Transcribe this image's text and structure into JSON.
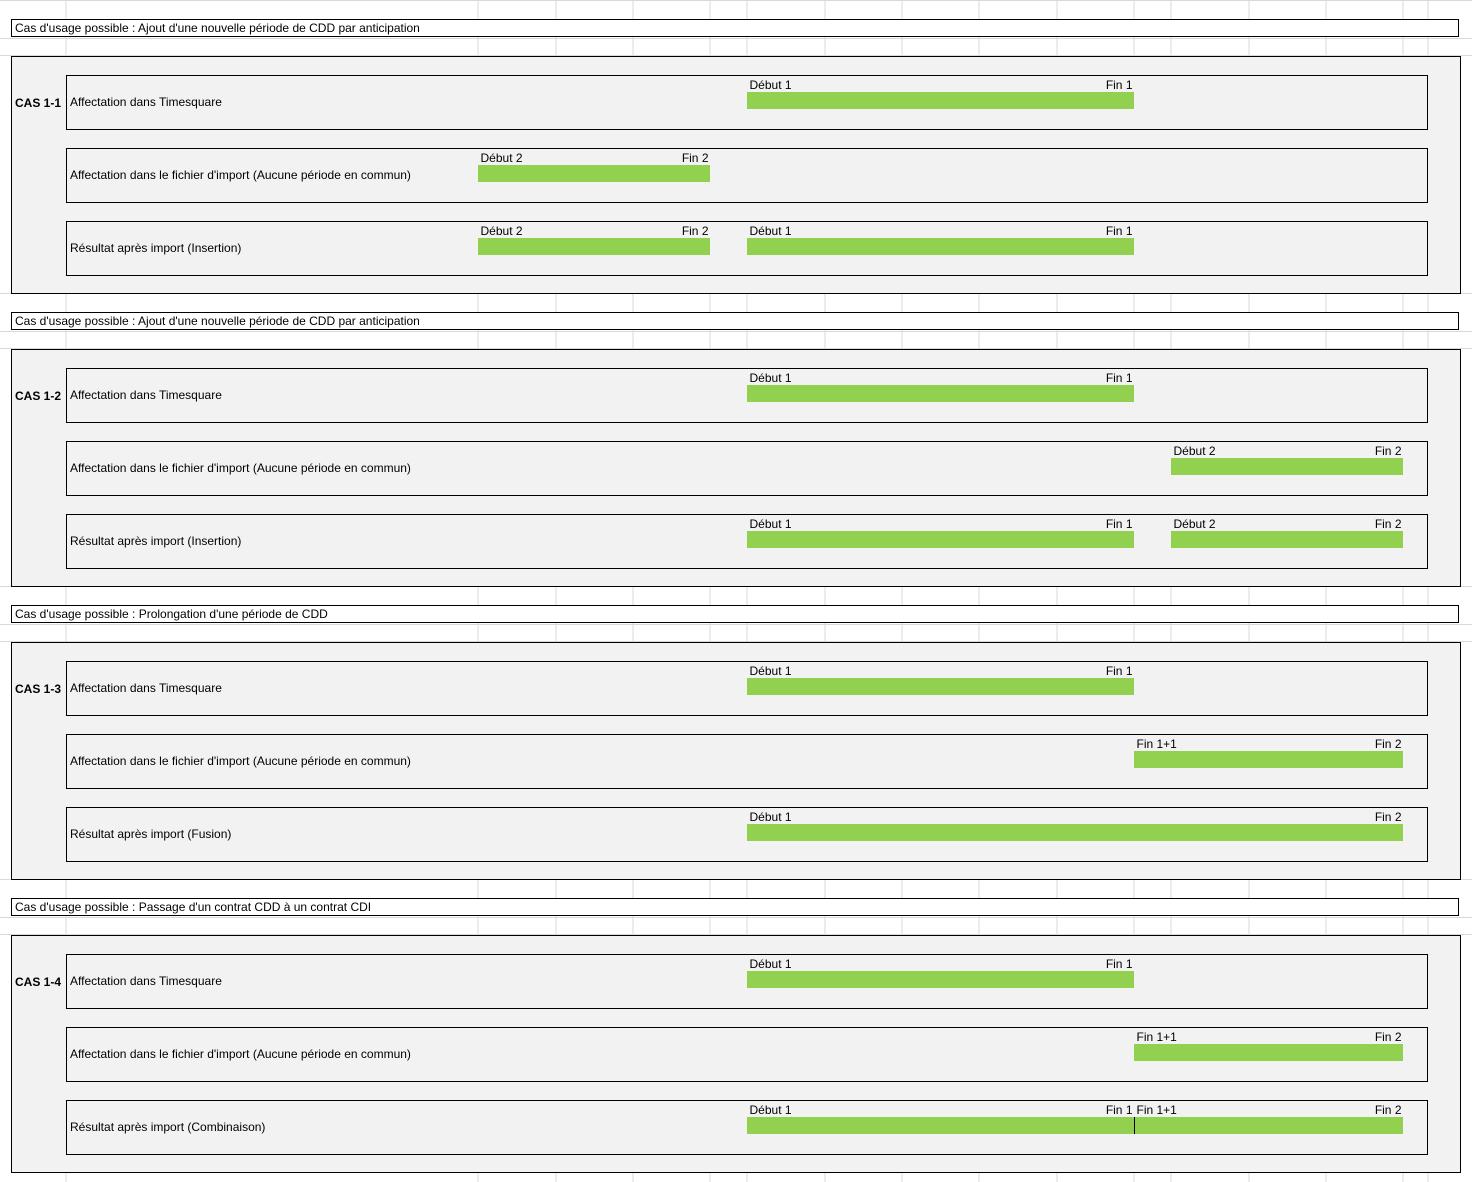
{
  "colors": {
    "bar": "#92d050",
    "panel": "#f2f2f2",
    "grid": "#d9d9d9"
  },
  "sections": [
    {
      "header": "Cas d'usage possible : Ajout d'une nouvelle période de CDD par anticipation",
      "case_label": "CAS 1-1",
      "rows": [
        {
          "label": "Affectation dans Timesquare",
          "bars": [
            {
              "start_label": "Début 1",
              "end_label": "Fin 1"
            }
          ]
        },
        {
          "label": "Affectation dans le fichier d'import (Aucune période en commun)",
          "bars": [
            {
              "start_label": "Début 2",
              "end_label": "Fin 2"
            }
          ]
        },
        {
          "label": "Résultat après import (Insertion)",
          "bars": [
            {
              "start_label": "Début 2",
              "end_label": "Fin 2"
            },
            {
              "start_label": "Début 1",
              "end_label": "Fin 1"
            }
          ]
        }
      ]
    },
    {
      "header": "Cas d'usage possible : Ajout d'une nouvelle période de CDD par anticipation",
      "case_label": "CAS 1-2",
      "rows": [
        {
          "label": "Affectation dans Timesquare",
          "bars": [
            {
              "start_label": "Début 1",
              "end_label": "Fin 1"
            }
          ]
        },
        {
          "label": "Affectation dans le fichier d'import (Aucune période en commun)",
          "bars": [
            {
              "start_label": "Début 2",
              "end_label": "Fin 2"
            }
          ]
        },
        {
          "label": "Résultat après import (Insertion)",
          "bars": [
            {
              "start_label": "Début 1",
              "end_label": "Fin 1"
            },
            {
              "start_label": "Début 2",
              "end_label": "Fin 2"
            }
          ]
        }
      ]
    },
    {
      "header": "Cas d'usage possible : Prolongation d'une période de CDD",
      "case_label": "CAS 1-3",
      "rows": [
        {
          "label": "Affectation dans Timesquare",
          "bars": [
            {
              "start_label": "Début 1",
              "end_label": "Fin 1"
            }
          ]
        },
        {
          "label": "Affectation dans le fichier d'import (Aucune période en commun)",
          "bars": [
            {
              "start_label": "Fin 1+1",
              "end_label": "Fin 2"
            }
          ]
        },
        {
          "label": "Résultat après import (Fusion)",
          "bars": [
            {
              "start_label": "Début 1",
              "end_label": "Fin 2"
            }
          ]
        }
      ]
    },
    {
      "header": "Cas d'usage possible : Passage d'un contrat CDD à un contrat CDI",
      "case_label": "CAS 1-4",
      "rows": [
        {
          "label": "Affectation dans Timesquare",
          "bars": [
            {
              "start_label": "Début 1",
              "end_label": "Fin 1"
            }
          ]
        },
        {
          "label": "Affectation dans le fichier d'import (Aucune période en commun)",
          "bars": [
            {
              "start_label": "Fin 1+1",
              "end_label": "Fin 2"
            }
          ]
        },
        {
          "label": "Résultat après import (Combinaison)",
          "bars": [
            {
              "start_label": "Début 1",
              "end_label": "Fin 1"
            },
            {
              "start_label": "Fin 1+1",
              "end_label": "Fin 2"
            }
          ]
        }
      ]
    }
  ]
}
